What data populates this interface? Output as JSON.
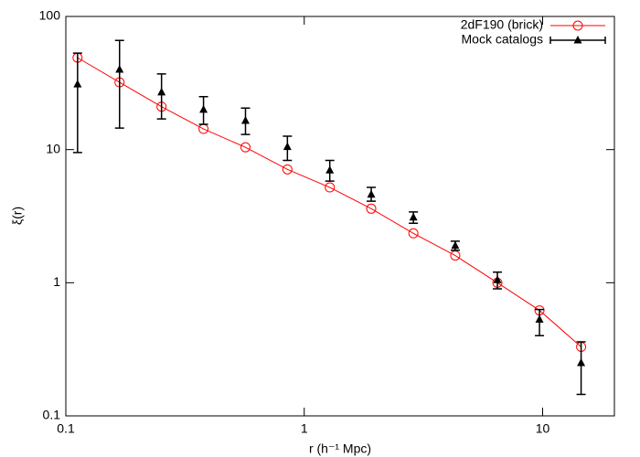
{
  "chart_data": {
    "type": "errorbar-loglog",
    "xlabel": "r (h⁻¹ Mpc)",
    "ylabel": "ξ(r)",
    "xscale": "log",
    "yscale": "log",
    "xlim": [
      0.1,
      20
    ],
    "ylim": [
      0.1,
      100
    ],
    "xticks": [
      0.1,
      1,
      10
    ],
    "yticks": [
      0.1,
      1,
      10,
      100
    ],
    "legend": "upper right",
    "series": [
      {
        "name": "2dF190 (brick)",
        "color": "#ff0000",
        "marker": "circle",
        "x": [
          0.112,
          0.168,
          0.252,
          0.378,
          0.567,
          0.85,
          1.28,
          1.91,
          2.87,
          4.3,
          6.46,
          9.7,
          14.5
        ],
        "values": [
          49,
          32,
          21,
          14.3,
          10.4,
          7.1,
          5.2,
          3.6,
          2.35,
          1.6,
          1.0,
          0.62,
          0.33
        ]
      },
      {
        "name": "Mock catalogs",
        "color": "#000000",
        "marker": "triangle",
        "x": [
          0.112,
          0.168,
          0.252,
          0.378,
          0.567,
          0.85,
          1.28,
          1.91,
          2.87,
          4.3,
          6.46,
          9.7,
          14.5
        ],
        "values": [
          31,
          40,
          27,
          20,
          16.5,
          10.5,
          7,
          4.6,
          3.1,
          1.9,
          1.05,
          0.53,
          0.25
        ],
        "lower": [
          9.5,
          14.5,
          17,
          15.5,
          13,
          8.3,
          5.8,
          4.1,
          2.8,
          1.75,
          0.9,
          0.4,
          0.145
        ],
        "upper": [
          53,
          66,
          37,
          25,
          20.5,
          12.6,
          8.3,
          5.2,
          3.4,
          2.05,
          1.2,
          0.63,
          0.36
        ]
      }
    ]
  }
}
